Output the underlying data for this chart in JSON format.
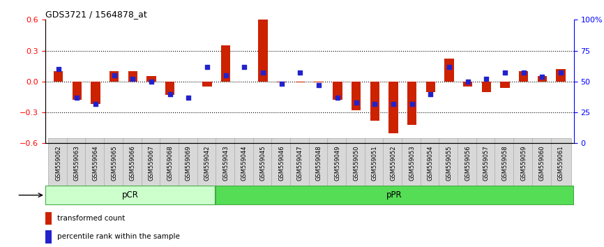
{
  "title": "GDS3721 / 1564878_at",
  "samples": [
    "GSM559062",
    "GSM559063",
    "GSM559064",
    "GSM559065",
    "GSM559066",
    "GSM559067",
    "GSM559068",
    "GSM559069",
    "GSM559042",
    "GSM559043",
    "GSM559044",
    "GSM559045",
    "GSM559046",
    "GSM559047",
    "GSM559048",
    "GSM559049",
    "GSM559050",
    "GSM559051",
    "GSM559052",
    "GSM559053",
    "GSM559054",
    "GSM559055",
    "GSM559056",
    "GSM559057",
    "GSM559058",
    "GSM559059",
    "GSM559060",
    "GSM559061"
  ],
  "red_bars": [
    0.1,
    -0.18,
    -0.22,
    0.1,
    0.1,
    0.05,
    -0.13,
    0.0,
    -0.05,
    0.35,
    0.0,
    0.6,
    -0.01,
    -0.01,
    -0.01,
    -0.18,
    -0.28,
    -0.38,
    -0.5,
    -0.42,
    -0.1,
    0.22,
    -0.05,
    -0.1,
    -0.06,
    0.1,
    0.05,
    0.12
  ],
  "blue_pct": [
    60,
    37,
    32,
    55,
    52,
    50,
    40,
    37,
    62,
    55,
    62,
    57,
    48,
    57,
    47,
    37,
    33,
    32,
    32,
    32,
    40,
    62,
    50,
    52,
    57,
    57,
    54,
    57
  ],
  "pcr_count": 9,
  "ppr_count": 19,
  "ylim": [
    -0.6,
    0.6
  ],
  "right_ylim": [
    0,
    100
  ],
  "right_yticks": [
    0,
    25,
    50,
    75,
    100
  ],
  "left_yticks": [
    -0.6,
    -0.3,
    0.0,
    0.3,
    0.6
  ],
  "bar_color": "#cc2200",
  "dot_color": "#2222cc",
  "pcr_light": "#ccffcc",
  "ppr_green": "#55dd55",
  "dot_size": 22,
  "bar_width": 0.5
}
